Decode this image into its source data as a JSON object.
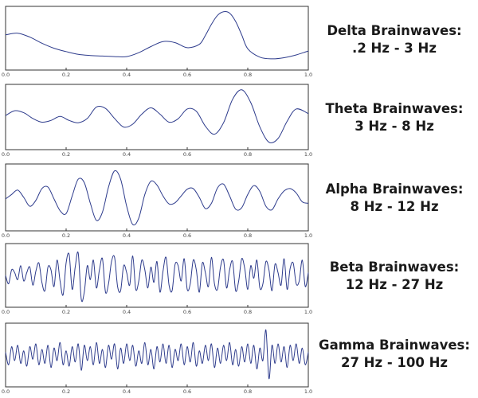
{
  "chart_data": [
    {
      "type": "line",
      "name": "delta",
      "title": "Delta Brainwaves:",
      "subtitle": ".2 Hz - 3 Hz",
      "line_color": "#2d3b8c",
      "xlim": [
        0.0,
        1.0
      ],
      "xticks": [
        "0.0",
        "0.2",
        "0.4",
        "0.6",
        "0.8",
        "1.0"
      ],
      "ylim": [
        -1,
        1
      ],
      "x": [
        0.0,
        0.04,
        0.08,
        0.12,
        0.16,
        0.2,
        0.24,
        0.28,
        0.32,
        0.36,
        0.4,
        0.44,
        0.48,
        0.52,
        0.56,
        0.6,
        0.64,
        0.66,
        0.68,
        0.7,
        0.72,
        0.74,
        0.76,
        0.78,
        0.8,
        0.84,
        0.88,
        0.92,
        0.96,
        1.0
      ],
      "y": [
        0.12,
        0.18,
        0.04,
        -0.18,
        -0.36,
        -0.48,
        -0.58,
        -0.62,
        -0.64,
        -0.66,
        -0.66,
        -0.52,
        -0.3,
        -0.12,
        -0.16,
        -0.34,
        -0.22,
        0.1,
        0.5,
        0.82,
        0.95,
        0.9,
        0.6,
        0.12,
        -0.38,
        -0.68,
        -0.74,
        -0.7,
        -0.6,
        -0.46
      ]
    },
    {
      "type": "line",
      "name": "theta",
      "title": "Theta Brainwaves:",
      "subtitle": "3 Hz - 8 Hz",
      "line_color": "#2d3b8c",
      "xlim": [
        0.0,
        1.0
      ],
      "xticks": [
        "0.0",
        "0.2",
        "0.4",
        "0.6",
        "0.8",
        "1.0"
      ],
      "ylim": [
        -1,
        1
      ],
      "x": [
        0.0,
        0.03,
        0.06,
        0.09,
        0.12,
        0.15,
        0.18,
        0.21,
        0.24,
        0.27,
        0.3,
        0.33,
        0.36,
        0.39,
        0.42,
        0.45,
        0.48,
        0.51,
        0.54,
        0.57,
        0.6,
        0.63,
        0.66,
        0.69,
        0.72,
        0.75,
        0.78,
        0.81,
        0.84,
        0.87,
        0.9,
        0.93,
        0.96,
        1.0
      ],
      "y": [
        0.05,
        0.22,
        0.15,
        -0.05,
        -0.18,
        -0.12,
        0.02,
        -0.12,
        -0.2,
        -0.05,
        0.35,
        0.3,
        -0.05,
        -0.35,
        -0.25,
        0.1,
        0.32,
        0.1,
        -0.18,
        -0.06,
        0.28,
        0.2,
        -0.32,
        -0.6,
        -0.2,
        0.62,
        0.95,
        0.5,
        -0.35,
        -0.88,
        -0.75,
        -0.15,
        0.28,
        0.12
      ]
    },
    {
      "type": "line",
      "name": "alpha",
      "title": "Alpha Brainwaves:",
      "subtitle": "8 Hz - 12 Hz",
      "line_color": "#2d3b8c",
      "xlim": [
        0.0,
        1.0
      ],
      "xticks": [
        "0.0",
        "0.2",
        "0.4",
        "0.6",
        "0.8",
        "1.0"
      ],
      "ylim": [
        -1,
        1
      ],
      "x": [
        0.0,
        0.02,
        0.04,
        0.06,
        0.08,
        0.1,
        0.12,
        0.14,
        0.16,
        0.18,
        0.2,
        0.22,
        0.24,
        0.26,
        0.28,
        0.3,
        0.32,
        0.34,
        0.36,
        0.38,
        0.4,
        0.42,
        0.44,
        0.46,
        0.48,
        0.5,
        0.52,
        0.54,
        0.56,
        0.58,
        0.6,
        0.62,
        0.64,
        0.66,
        0.68,
        0.7,
        0.72,
        0.74,
        0.76,
        0.78,
        0.8,
        0.82,
        0.84,
        0.86,
        0.88,
        0.9,
        0.92,
        0.94,
        0.96,
        0.98,
        1.0
      ],
      "y": [
        -0.05,
        0.1,
        0.25,
        0.0,
        -0.3,
        -0.1,
        0.3,
        0.35,
        -0.05,
        -0.45,
        -0.55,
        0.05,
        0.62,
        0.5,
        -0.2,
        -0.78,
        -0.5,
        0.35,
        0.9,
        0.62,
        -0.3,
        -0.92,
        -0.7,
        0.1,
        0.55,
        0.42,
        0.05,
        -0.22,
        -0.18,
        0.05,
        0.28,
        0.3,
        0.0,
        -0.38,
        -0.2,
        0.32,
        0.45,
        0.05,
        -0.4,
        -0.35,
        0.1,
        0.4,
        0.2,
        -0.3,
        -0.42,
        -0.05,
        0.22,
        0.3,
        0.15,
        -0.15,
        -0.2
      ]
    },
    {
      "type": "line",
      "name": "beta",
      "title": "Beta Brainwaves:",
      "subtitle": "12 Hz - 27 Hz",
      "line_color": "#2d3b8c",
      "xlim": [
        0.0,
        1.0
      ],
      "xticks": [
        "0.0",
        "0.2",
        "0.4",
        "0.6",
        "0.8",
        "1.0"
      ],
      "ylim": [
        -1,
        1
      ],
      "x": [
        0.0,
        0.01,
        0.02,
        0.03,
        0.04,
        0.05,
        0.06,
        0.07,
        0.08,
        0.09,
        0.1,
        0.11,
        0.12,
        0.13,
        0.14,
        0.15,
        0.16,
        0.17,
        0.18,
        0.19,
        0.2,
        0.21,
        0.22,
        0.23,
        0.24,
        0.25,
        0.26,
        0.27,
        0.28,
        0.29,
        0.3,
        0.31,
        0.32,
        0.33,
        0.34,
        0.35,
        0.36,
        0.37,
        0.38,
        0.39,
        0.4,
        0.41,
        0.42,
        0.43,
        0.44,
        0.45,
        0.46,
        0.47,
        0.48,
        0.49,
        0.5,
        0.51,
        0.52,
        0.53,
        0.54,
        0.55,
        0.56,
        0.57,
        0.58,
        0.59,
        0.6,
        0.61,
        0.62,
        0.63,
        0.64,
        0.65,
        0.66,
        0.67,
        0.68,
        0.69,
        0.7,
        0.71,
        0.72,
        0.73,
        0.74,
        0.75,
        0.76,
        0.77,
        0.78,
        0.79,
        0.8,
        0.81,
        0.82,
        0.83,
        0.84,
        0.85,
        0.86,
        0.87,
        0.88,
        0.89,
        0.9,
        0.91,
        0.92,
        0.93,
        0.94,
        0.95,
        0.96,
        0.97,
        0.98,
        0.99,
        1.0
      ],
      "y": [
        0.0,
        -0.3,
        0.2,
        0.1,
        -0.15,
        0.35,
        -0.2,
        0.1,
        0.3,
        -0.35,
        0.15,
        0.45,
        -0.25,
        -0.55,
        0.3,
        0.2,
        -0.4,
        0.55,
        -0.2,
        -0.7,
        0.45,
        0.75,
        -0.5,
        0.3,
        0.8,
        -0.85,
        -0.6,
        0.35,
        -0.15,
        0.55,
        -0.45,
        0.2,
        0.6,
        -0.6,
        -0.3,
        0.5,
        0.65,
        -0.4,
        -0.55,
        0.35,
        0.1,
        -0.35,
        0.7,
        -0.5,
        -0.2,
        0.55,
        0.2,
        -0.45,
        0.3,
        -0.25,
        0.5,
        -0.6,
        0.15,
        0.65,
        -0.35,
        -0.55,
        0.4,
        0.35,
        -0.2,
        0.6,
        -0.5,
        -0.3,
        0.55,
        0.2,
        -0.6,
        0.45,
        0.1,
        -0.4,
        0.65,
        -0.3,
        -0.5,
        0.3,
        0.55,
        -0.45,
        0.2,
        0.5,
        -0.55,
        -0.2,
        0.6,
        0.25,
        -0.5,
        0.35,
        -0.1,
        0.55,
        -0.45,
        -0.3,
        0.5,
        0.2,
        -0.55,
        0.4,
        0.1,
        -0.35,
        0.6,
        -0.5,
        0.25,
        0.45,
        -0.3,
        -0.2,
        0.55,
        -0.4,
        0.1
      ]
    },
    {
      "type": "line",
      "name": "gamma",
      "title": "Gamma Brainwaves:",
      "subtitle": "27 Hz - 100 Hz",
      "line_color": "#2d3b8c",
      "xlim": [
        0.0,
        1.0
      ],
      "xticks": [
        "0.0",
        "0.2",
        "0.4",
        "0.6",
        "0.8",
        "1.0"
      ],
      "ylim": [
        -1,
        1
      ],
      "x": [
        0.0,
        0.01,
        0.02,
        0.03,
        0.04,
        0.05,
        0.06,
        0.07,
        0.08,
        0.09,
        0.1,
        0.11,
        0.12,
        0.13,
        0.14,
        0.15,
        0.16,
        0.17,
        0.18,
        0.19,
        0.2,
        0.21,
        0.22,
        0.23,
        0.24,
        0.25,
        0.26,
        0.27,
        0.28,
        0.29,
        0.3,
        0.31,
        0.32,
        0.33,
        0.34,
        0.35,
        0.36,
        0.37,
        0.38,
        0.39,
        0.4,
        0.41,
        0.42,
        0.43,
        0.44,
        0.45,
        0.46,
        0.47,
        0.48,
        0.49,
        0.5,
        0.51,
        0.52,
        0.53,
        0.54,
        0.55,
        0.56,
        0.57,
        0.58,
        0.59,
        0.6,
        0.61,
        0.62,
        0.63,
        0.64,
        0.65,
        0.66,
        0.67,
        0.68,
        0.69,
        0.7,
        0.71,
        0.72,
        0.73,
        0.74,
        0.75,
        0.76,
        0.77,
        0.78,
        0.79,
        0.8,
        0.81,
        0.82,
        0.83,
        0.84,
        0.85,
        0.86,
        0.87,
        0.88,
        0.89,
        0.9,
        0.91,
        0.92,
        0.93,
        0.94,
        0.95,
        0.96,
        0.97,
        0.98,
        0.99,
        1.0
      ],
      "y": [
        0.1,
        -0.35,
        0.3,
        -0.2,
        0.35,
        -0.3,
        0.15,
        -0.4,
        0.3,
        -0.15,
        0.4,
        -0.35,
        0.2,
        -0.3,
        0.35,
        -0.45,
        0.25,
        -0.2,
        0.45,
        -0.35,
        0.15,
        -0.4,
        0.3,
        -0.25,
        0.4,
        -0.55,
        0.35,
        -0.2,
        0.3,
        -0.35,
        0.45,
        -0.3,
        0.2,
        -0.45,
        0.35,
        -0.15,
        0.4,
        -0.5,
        0.25,
        -0.3,
        0.4,
        -0.2,
        0.35,
        -0.4,
        0.15,
        -0.3,
        0.45,
        -0.35,
        0.2,
        -0.5,
        0.3,
        -0.25,
        0.4,
        -0.3,
        0.35,
        -0.45,
        0.2,
        -0.2,
        0.4,
        -0.35,
        0.3,
        -0.25,
        0.45,
        -0.4,
        0.15,
        -0.3,
        0.35,
        -0.2,
        0.4,
        -0.45,
        0.25,
        -0.3,
        0.35,
        -0.2,
        0.45,
        -0.35,
        0.2,
        -0.4,
        0.3,
        -0.25,
        0.4,
        -0.3,
        0.35,
        -0.5,
        0.25,
        -0.2,
        0.9,
        -0.85,
        0.35,
        -0.3,
        0.4,
        -0.25,
        0.3,
        -0.45,
        0.35,
        -0.2,
        0.4,
        -0.3,
        0.25,
        -0.35,
        0.1
      ]
    }
  ]
}
